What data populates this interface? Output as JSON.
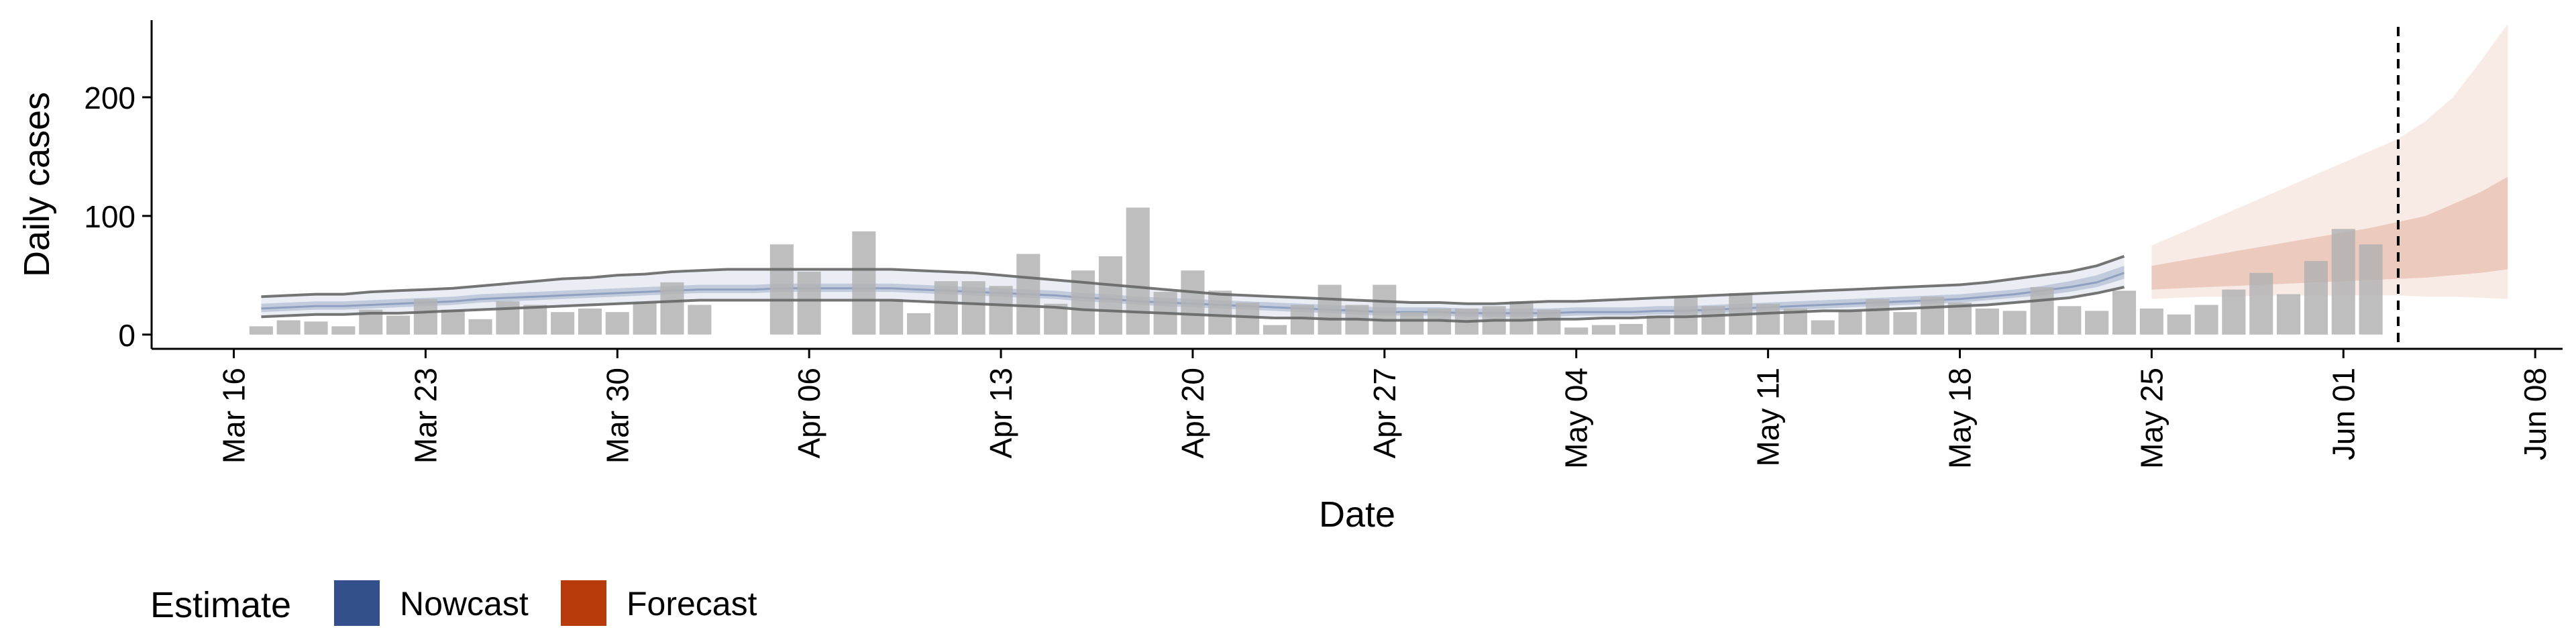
{
  "chart_data": {
    "type": "bar",
    "xlabel": "Date",
    "ylabel": "Daily cases",
    "ylim": [
      -12,
      265
    ],
    "xlim": [
      "2020-03-13",
      "2020-06-09"
    ],
    "x_ticks": [
      "Mar 16",
      "Mar 23",
      "Mar 30",
      "Apr 06",
      "Apr 13",
      "Apr 20",
      "Apr 27",
      "May 04",
      "May 11",
      "May 18",
      "May 25",
      "Jun 01",
      "Jun 08"
    ],
    "y_ticks": [
      0,
      100,
      200
    ],
    "grid": false,
    "reference_line_date": "2020-06-03",
    "legend": {
      "title": "Estimate",
      "position": "bottom-left",
      "items": [
        {
          "label": "Nowcast",
          "color": "#34508C"
        },
        {
          "label": "Forecast",
          "color": "#B63A0A"
        }
      ]
    },
    "colors": {
      "bars": "#B3B3B3",
      "nowcast": "#34508C",
      "forecast": "#B63A0A",
      "bounds_line": "#666666"
    },
    "bars": {
      "start_date": "2020-03-17",
      "values": [
        7,
        12,
        11,
        7,
        21,
        16,
        30,
        21,
        13,
        28,
        25,
        19,
        22,
        19,
        27,
        44,
        25,
        0,
        0,
        76,
        53,
        0,
        87,
        30,
        18,
        45,
        45,
        41,
        68,
        26,
        54,
        66,
        107,
        36,
        54,
        37,
        27,
        8,
        25,
        42,
        25,
        42,
        19,
        22,
        22,
        24,
        28,
        21,
        6,
        8,
        9,
        16,
        32,
        24,
        35,
        26,
        22,
        12,
        20,
        30,
        19,
        32,
        27,
        22,
        20,
        40,
        24,
        20,
        37,
        22,
        17,
        25,
        38,
        52,
        34,
        62,
        89,
        76
      ]
    },
    "nowcast": {
      "start_date": "2020-03-17",
      "median": [
        22,
        23,
        24,
        24,
        25,
        26,
        27,
        28,
        30,
        31,
        32,
        33,
        34,
        35,
        36,
        37,
        38,
        38,
        38,
        39,
        39,
        39,
        39,
        39,
        38,
        37,
        36,
        35,
        34,
        33,
        31,
        30,
        28,
        27,
        26,
        25,
        24,
        23,
        22,
        21,
        20,
        19,
        19,
        19,
        18,
        18,
        18,
        18,
        19,
        19,
        19,
        20,
        20,
        21,
        22,
        23,
        24,
        25,
        26,
        27,
        28,
        29,
        30,
        32,
        34,
        37,
        40,
        44,
        52
      ],
      "inner_low": [
        19,
        20,
        21,
        21,
        22,
        23,
        24,
        25,
        27,
        28,
        29,
        30,
        31,
        32,
        33,
        34,
        35,
        35,
        35,
        36,
        36,
        36,
        36,
        36,
        35,
        34,
        33,
        32,
        31,
        30,
        28,
        27,
        25,
        24,
        23,
        22,
        21,
        20,
        19,
        18,
        17,
        16,
        16,
        16,
        15,
        15,
        15,
        15,
        16,
        16,
        16,
        17,
        17,
        18,
        19,
        20,
        21,
        22,
        23,
        24,
        25,
        26,
        27,
        29,
        31,
        33,
        36,
        40,
        47
      ],
      "inner_high": [
        26,
        27,
        28,
        28,
        29,
        30,
        31,
        32,
        34,
        35,
        36,
        37,
        38,
        39,
        40,
        41,
        42,
        42,
        42,
        43,
        43,
        43,
        43,
        43,
        42,
        41,
        40,
        39,
        38,
        37,
        35,
        34,
        32,
        31,
        30,
        29,
        28,
        27,
        26,
        25,
        24,
        23,
        23,
        23,
        22,
        22,
        22,
        22,
        23,
        23,
        23,
        24,
        24,
        25,
        26,
        27,
        28,
        29,
        30,
        31,
        32,
        33,
        34,
        36,
        38,
        41,
        45,
        50,
        58
      ],
      "lower_bound": [
        15,
        16,
        17,
        17,
        18,
        18,
        19,
        20,
        21,
        22,
        23,
        24,
        25,
        26,
        27,
        28,
        29,
        29,
        29,
        29,
        29,
        29,
        29,
        29,
        28,
        27,
        26,
        25,
        24,
        23,
        21,
        20,
        19,
        18,
        17,
        16,
        15,
        14,
        14,
        13,
        13,
        12,
        12,
        12,
        11,
        12,
        12,
        13,
        13,
        14,
        14,
        15,
        15,
        16,
        17,
        18,
        19,
        20,
        20,
        21,
        22,
        23,
        24,
        25,
        27,
        29,
        31,
        35,
        40
      ],
      "upper_bound": [
        32,
        33,
        34,
        34,
        36,
        37,
        38,
        39,
        41,
        43,
        45,
        47,
        48,
        50,
        51,
        53,
        54,
        55,
        55,
        55,
        55,
        55,
        55,
        55,
        54,
        53,
        52,
        50,
        48,
        46,
        44,
        42,
        40,
        38,
        36,
        34,
        33,
        32,
        31,
        30,
        29,
        28,
        27,
        27,
        26,
        26,
        27,
        28,
        28,
        29,
        30,
        31,
        32,
        33,
        34,
        35,
        36,
        37,
        38,
        39,
        40,
        41,
        42,
        44,
        47,
        50,
        53,
        58,
        66
      ]
    },
    "forecast": {
      "start_date": "2020-05-25",
      "median": [
        48,
        50,
        52,
        54,
        56,
        58,
        60,
        62,
        64,
        66,
        68,
        70,
        75,
        80
      ],
      "inner_low": [
        38,
        39,
        40,
        41,
        42,
        43,
        44,
        45,
        46,
        47,
        48,
        50,
        52,
        55
      ],
      "inner_high": [
        58,
        62,
        66,
        70,
        74,
        78,
        82,
        86,
        90,
        95,
        100,
        110,
        120,
        133
      ],
      "outer_low": [
        30,
        31,
        32,
        32,
        33,
        33,
        33,
        33,
        33,
        33,
        32,
        32,
        31,
        30
      ],
      "outer_high": [
        75,
        85,
        95,
        105,
        115,
        125,
        135,
        145,
        155,
        165,
        180,
        200,
        230,
        262
      ]
    }
  }
}
